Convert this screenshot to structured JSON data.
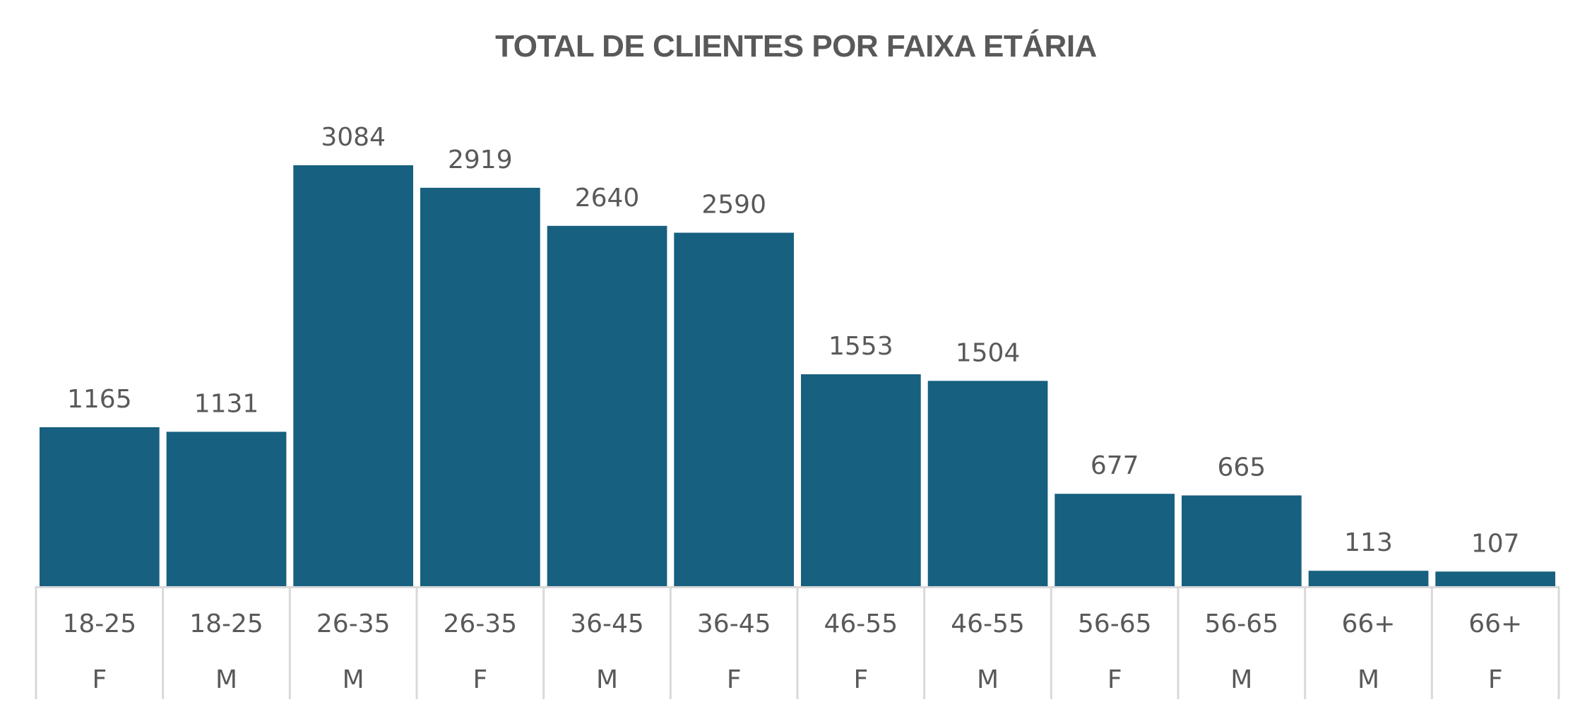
{
  "chart_data": {
    "type": "bar",
    "title": "TOTAL DE CLIENTES POR FAIXA ETÁRIA",
    "categories": [
      {
        "age": "18-25",
        "sex": "F"
      },
      {
        "age": "18-25",
        "sex": "M"
      },
      {
        "age": "26-35",
        "sex": "M"
      },
      {
        "age": "26-35",
        "sex": "F"
      },
      {
        "age": "36-45",
        "sex": "M"
      },
      {
        "age": "36-45",
        "sex": "F"
      },
      {
        "age": "46-55",
        "sex": "F"
      },
      {
        "age": "46-55",
        "sex": "M"
      },
      {
        "age": "56-65",
        "sex": "F"
      },
      {
        "age": "56-65",
        "sex": "M"
      },
      {
        "age": "66+",
        "sex": "M"
      },
      {
        "age": "66+",
        "sex": "F"
      }
    ],
    "values": [
      1165,
      1131,
      3084,
      2919,
      2640,
      2590,
      1553,
      1504,
      677,
      665,
      113,
      107
    ],
    "data_labels": [
      "1165",
      "1131",
      "3084",
      "2919",
      "2640",
      "2590",
      "1553",
      "1504",
      "677",
      "665",
      "113",
      "107"
    ],
    "xlabel": "",
    "ylabel": "",
    "ylim": [
      0,
      3084
    ],
    "grid": false,
    "legend": "none",
    "bar_color": "#17607f",
    "text_color": "#595959",
    "axis_color": "#d9d9d9"
  }
}
